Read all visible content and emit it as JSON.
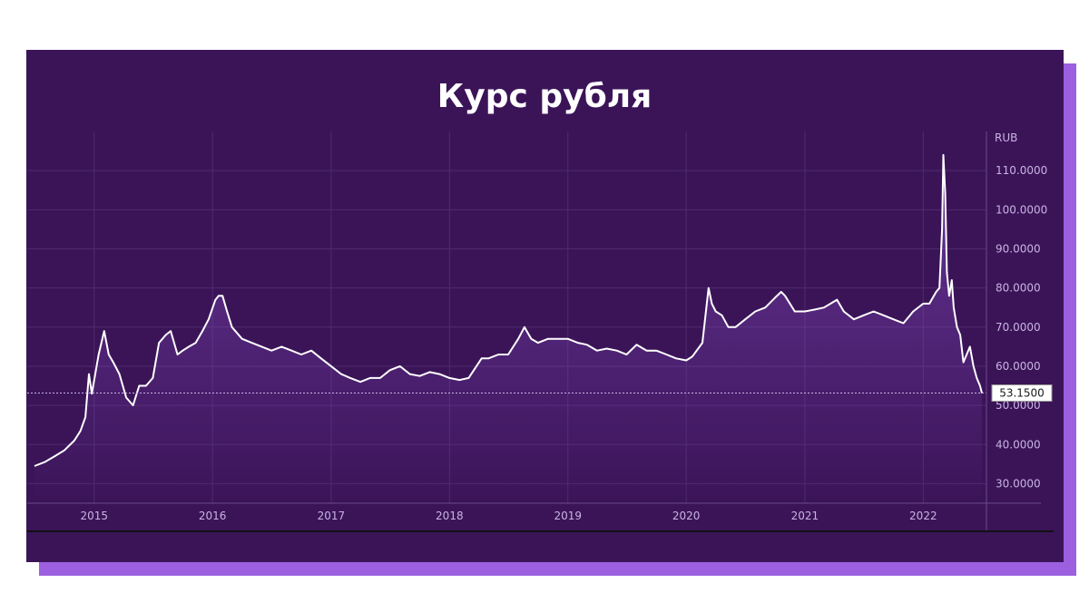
{
  "page": {
    "title": "Курс рубля"
  },
  "colors": {
    "card_background": "#3b1458",
    "shadow": "#9b5fe0",
    "line": "#ffffff",
    "area_fill": "#8a4fc9",
    "grid": "#4e2a6e"
  },
  "chart_data": {
    "type": "area",
    "title": "Курс рубля",
    "ylabel": "RUB",
    "xlabel": "",
    "current_value_label": "53.1500",
    "current_value": 53.15,
    "ylim": [
      25,
      120
    ],
    "xlim": [
      "2014-07-01",
      "2022-07-15"
    ],
    "grid": true,
    "y_ticks": [
      {
        "value": 110,
        "label": "110.0000"
      },
      {
        "value": 100,
        "label": "100.0000"
      },
      {
        "value": 90,
        "label": "90.0000"
      },
      {
        "value": 80,
        "label": "80.0000"
      },
      {
        "value": 70,
        "label": "70.0000"
      },
      {
        "value": 60,
        "label": "60.0000"
      },
      {
        "value": 50,
        "label": "50.0000"
      },
      {
        "value": 40,
        "label": "40.0000"
      },
      {
        "value": 30,
        "label": "30.0000"
      }
    ],
    "x_ticks": [
      {
        "date": "2015-01-01",
        "label": "2015"
      },
      {
        "date": "2016-01-01",
        "label": "2016"
      },
      {
        "date": "2017-01-01",
        "label": "2017"
      },
      {
        "date": "2018-01-01",
        "label": "2018"
      },
      {
        "date": "2019-01-01",
        "label": "2019"
      },
      {
        "date": "2020-01-01",
        "label": "2020"
      },
      {
        "date": "2021-01-01",
        "label": "2021"
      },
      {
        "date": "2022-01-01",
        "label": "2022"
      }
    ],
    "series": [
      {
        "x": [
          "2014-07-01",
          "2014-08-01",
          "2014-09-01",
          "2014-10-01",
          "2014-11-01",
          "2014-11-20",
          "2014-12-05",
          "2014-12-16",
          "2014-12-25",
          "2015-01-15",
          "2015-02-01",
          "2015-02-15",
          "2015-03-01",
          "2015-03-20",
          "2015-04-10",
          "2015-05-01",
          "2015-05-20",
          "2015-06-10",
          "2015-07-01",
          "2015-07-20",
          "2015-08-10",
          "2015-08-25",
          "2015-09-15",
          "2015-10-01",
          "2015-10-20",
          "2015-11-10",
          "2015-12-01",
          "2015-12-20",
          "2016-01-10",
          "2016-01-20",
          "2016-02-01",
          "2016-02-15",
          "2016-03-01",
          "2016-04-01",
          "2016-05-01",
          "2016-06-01",
          "2016-07-01",
          "2016-08-01",
          "2016-09-01",
          "2016-10-01",
          "2016-11-01",
          "2016-12-01",
          "2017-01-01",
          "2017-02-01",
          "2017-03-01",
          "2017-04-01",
          "2017-05-01",
          "2017-06-01",
          "2017-07-01",
          "2017-08-01",
          "2017-09-01",
          "2017-10-01",
          "2017-11-01",
          "2017-12-01",
          "2018-01-01",
          "2018-02-01",
          "2018-03-01",
          "2018-04-10",
          "2018-05-01",
          "2018-06-01",
          "2018-07-01",
          "2018-08-01",
          "2018-08-20",
          "2018-09-10",
          "2018-10-01",
          "2018-11-01",
          "2018-12-01",
          "2019-01-01",
          "2019-02-01",
          "2019-03-01",
          "2019-04-01",
          "2019-05-01",
          "2019-06-01",
          "2019-07-01",
          "2019-08-01",
          "2019-09-01",
          "2019-10-01",
          "2019-11-01",
          "2019-12-01",
          "2020-01-01",
          "2020-01-20",
          "2020-02-20",
          "2020-03-10",
          "2020-03-20",
          "2020-04-01",
          "2020-04-20",
          "2020-05-10",
          "2020-06-01",
          "2020-07-01",
          "2020-08-01",
          "2020-09-01",
          "2020-10-01",
          "2020-10-20",
          "2020-11-01",
          "2020-12-01",
          "2021-01-01",
          "2021-02-01",
          "2021-03-01",
          "2021-04-10",
          "2021-05-01",
          "2021-06-01",
          "2021-07-01",
          "2021-08-01",
          "2021-09-01",
          "2021-10-01",
          "2021-11-01",
          "2021-12-01",
          "2022-01-01",
          "2022-01-20",
          "2022-02-10",
          "2022-02-20",
          "2022-02-28",
          "2022-03-04",
          "2022-03-10",
          "2022-03-15",
          "2022-03-22",
          "2022-03-30",
          "2022-04-05",
          "2022-04-15",
          "2022-04-25",
          "2022-05-05",
          "2022-05-15",
          "2022-05-25",
          "2022-06-05",
          "2022-06-15",
          "2022-06-25",
          "2022-07-01"
        ],
        "values": [
          34.5,
          35.5,
          37,
          38.5,
          41,
          43.5,
          47,
          58,
          53,
          63,
          69,
          63,
          61,
          58,
          52,
          50,
          55,
          55,
          57,
          66,
          68,
          69,
          63,
          64,
          65,
          66,
          69,
          72,
          77,
          78,
          78,
          74,
          70,
          67,
          66,
          65,
          64,
          65,
          64,
          63,
          64,
          62,
          60,
          58,
          57,
          56,
          57,
          57,
          59,
          60,
          58,
          57.5,
          58.5,
          58,
          57,
          56.5,
          57,
          62,
          62,
          63,
          63,
          67,
          70,
          67,
          66,
          67,
          67,
          67,
          66,
          65.5,
          64,
          64.5,
          64,
          63,
          65.5,
          64,
          64,
          63,
          62,
          61.5,
          62.5,
          66,
          80,
          76,
          74,
          73,
          70,
          70,
          72,
          74,
          75,
          77.5,
          79,
          78,
          74,
          74,
          74.5,
          75,
          77,
          74,
          72,
          73,
          74,
          73,
          72,
          71,
          74,
          76,
          76,
          79,
          80,
          95,
          114,
          104,
          84,
          78,
          82,
          75,
          70,
          68,
          61,
          63,
          65,
          60,
          57,
          55,
          53.15
        ]
      }
    ]
  }
}
